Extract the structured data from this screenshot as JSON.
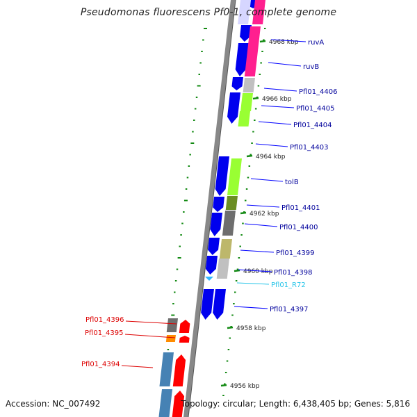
{
  "title": "Pseudomonas fluorescens Pf0-1, complete genome",
  "footer": {
    "accession": "Accession: NC_007492",
    "topology": "Topology: circular; Length: 6,438,405 bp; Genes: 5,816"
  },
  "colors": {
    "forward": "#0000ee",
    "label_forward": "#00009c",
    "reverse_label": "#dd0000",
    "rna_label": "#22c4e8",
    "backbone": "#888888",
    "tick": "#138a13"
  },
  "ticks": [
    "4956 kbp",
    "4958 kbp",
    "4960 kbp",
    "4962 kbp",
    "4964 kbp",
    "4966 kbp",
    "4968 kbp"
  ],
  "forward_genes": [
    {
      "label": "ruvA",
      "color": "#ff1f8f"
    },
    {
      "label": "ruvB",
      "color": "#ff1f8f"
    },
    {
      "label": "Pfl01_4406",
      "color": "#c0c0c0"
    },
    {
      "label": "Pfl01_4405",
      "color": "#99ff33"
    },
    {
      "label": "Pfl01_4404",
      "color": "#99ff33"
    },
    {
      "label": "Pfl01_4403",
      "color": ""
    },
    {
      "label": "tolB",
      "color": "#99ff33"
    },
    {
      "label": "Pfl01_4401",
      "color": "#6b8e23"
    },
    {
      "label": "Pfl01_4400",
      "color": "#6e6e6e"
    },
    {
      "label": "Pfl01_4399",
      "color": "#bdb76b"
    },
    {
      "label": "Pfl01_4398",
      "color": "#c0c0c0"
    },
    {
      "label": "Pfl01_R72",
      "color": "#33c4ff"
    },
    {
      "label": "Pfl01_4397",
      "color": ""
    }
  ],
  "reverse_genes": [
    {
      "label": "Pfl01_4396",
      "color": "#6e6e6e"
    },
    {
      "label": "Pfl01_4395",
      "color": "#ff8c00"
    },
    {
      "label": "Pfl01_4394",
      "color": "#4682b4"
    }
  ]
}
